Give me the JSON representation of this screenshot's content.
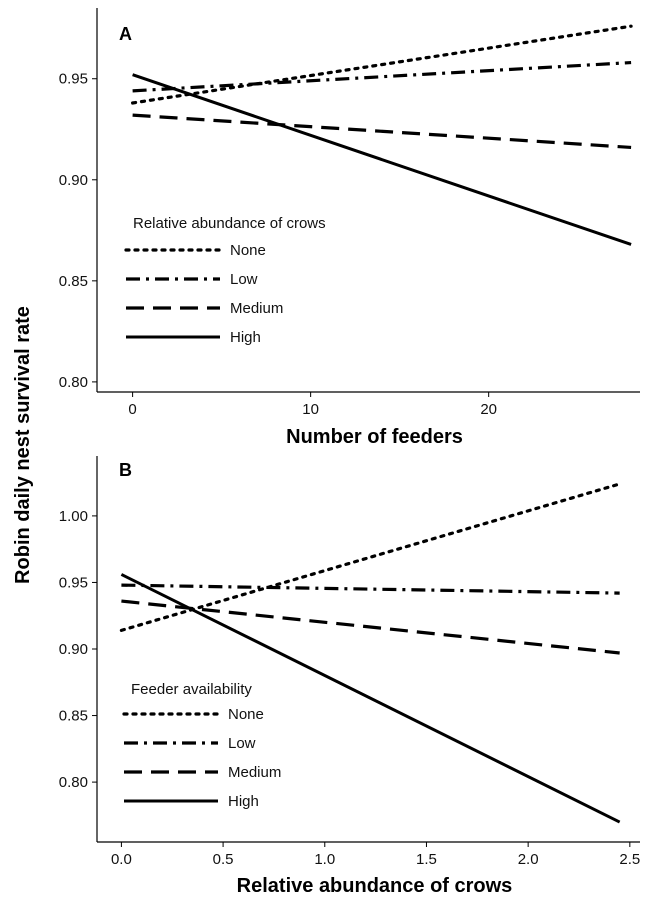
{
  "ylabel": "Robin daily nest survival rate",
  "styles": {
    "None": "dotted",
    "Low": "dashdot",
    "Medium": "dashed",
    "High": "solid"
  },
  "chart_data": [
    {
      "type": "line",
      "panel": "A",
      "xlabel": "Number of feeders",
      "xlim": [
        -2,
        28.5
      ],
      "ylim": [
        0.795,
        0.985
      ],
      "xticks": [
        "0",
        "10",
        "20"
      ],
      "xtick_values": [
        0,
        10,
        20
      ],
      "yticks": [
        "0.80",
        "0.85",
        "0.90",
        "0.95"
      ],
      "ytick_values": [
        0.8,
        0.85,
        0.9,
        0.95
      ],
      "legend_title": "Relative abundance of crows",
      "series": [
        {
          "name": "None",
          "x": [
            0,
            28
          ],
          "y": [
            0.938,
            0.976
          ]
        },
        {
          "name": "Low",
          "x": [
            0,
            28
          ],
          "y": [
            0.944,
            0.958
          ]
        },
        {
          "name": "Medium",
          "x": [
            0,
            28
          ],
          "y": [
            0.932,
            0.916
          ]
        },
        {
          "name": "High",
          "x": [
            0,
            28
          ],
          "y": [
            0.952,
            0.868
          ]
        }
      ]
    },
    {
      "type": "line",
      "panel": "B",
      "xlabel": "Relative abundance of crows",
      "xlim": [
        -0.12,
        2.55
      ],
      "ylim": [
        0.755,
        1.045
      ],
      "xticks": [
        "0.0",
        "0.5",
        "1.0",
        "1.5",
        "2.0",
        "2.5"
      ],
      "xtick_values": [
        0.0,
        0.5,
        1.0,
        1.5,
        2.0,
        2.5
      ],
      "yticks": [
        "0.80",
        "0.85",
        "0.90",
        "0.95",
        "1.00"
      ],
      "ytick_values": [
        0.8,
        0.85,
        0.9,
        0.95,
        1.0
      ],
      "legend_title": "Feeder availability",
      "series": [
        {
          "name": "None",
          "x": [
            0,
            2.45
          ],
          "y": [
            0.914,
            1.024
          ]
        },
        {
          "name": "Low",
          "x": [
            0,
            2.45
          ],
          "y": [
            0.948,
            0.942
          ]
        },
        {
          "name": "Medium",
          "x": [
            0,
            2.45
          ],
          "y": [
            0.936,
            0.897
          ]
        },
        {
          "name": "High",
          "x": [
            0,
            2.45
          ],
          "y": [
            0.956,
            0.77
          ]
        }
      ]
    }
  ]
}
